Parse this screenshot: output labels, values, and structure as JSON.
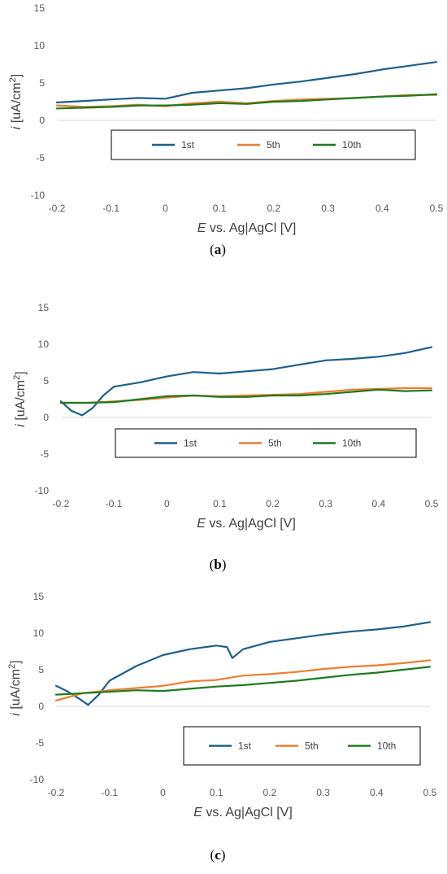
{
  "series_colors": {
    "1st": "#1f5f8b",
    "5th": "#ed7d31",
    "10th": "#1e7a1e"
  },
  "chart_data": [
    {
      "type": "line",
      "panel_label": {
        "pre": "(",
        "letter": "a",
        "post": ")"
      },
      "xlabel": {
        "italic": "E",
        "rest": " vs. Ag|AgCl [V]"
      },
      "ylabel": {
        "italic": "i",
        "rest": " [uA/cm",
        "sup": "2",
        "close": "]"
      },
      "xlim": [
        -0.2,
        0.5
      ],
      "ylim": [
        -10,
        15
      ],
      "xticks": [
        -0.2,
        -0.1,
        0,
        0.1,
        0.2,
        0.3,
        0.4,
        0.5
      ],
      "xtick_labels": [
        "-0.2",
        "-0.1",
        "0",
        "0.1",
        "0.2",
        "0.3",
        "0.4",
        "0.5"
      ],
      "yticks": [
        -10,
        -5,
        0,
        5,
        10,
        15
      ],
      "ytick_labels": [
        "-10",
        "-5",
        "0",
        "5",
        "10",
        "15"
      ],
      "grid": false,
      "legend": {
        "entries": [
          "1st",
          "5th",
          "10th"
        ],
        "placement": "center"
      },
      "series": [
        {
          "name": "1st",
          "x": [
            -0.2,
            -0.15,
            -0.1,
            -0.05,
            0,
            0.05,
            0.1,
            0.15,
            0.2,
            0.25,
            0.3,
            0.35,
            0.4,
            0.45,
            0.5
          ],
          "y": [
            2.4,
            2.6,
            2.8,
            3.0,
            2.9,
            3.7,
            4.0,
            4.3,
            4.8,
            5.2,
            5.7,
            6.2,
            6.8,
            7.3,
            7.8
          ]
        },
        {
          "name": "5th",
          "x": [
            -0.2,
            -0.15,
            -0.1,
            -0.05,
            0,
            0.05,
            0.1,
            0.15,
            0.2,
            0.25,
            0.3,
            0.35,
            0.4,
            0.45,
            0.5
          ],
          "y": [
            2.0,
            1.8,
            1.9,
            2.1,
            1.9,
            2.3,
            2.5,
            2.3,
            2.6,
            2.8,
            2.9,
            3.0,
            3.2,
            3.4,
            3.4
          ]
        },
        {
          "name": "10th",
          "x": [
            -0.2,
            -0.15,
            -0.1,
            -0.05,
            0,
            0.05,
            0.1,
            0.15,
            0.2,
            0.25,
            0.3,
            0.35,
            0.4,
            0.45,
            0.5
          ],
          "y": [
            1.6,
            1.7,
            1.8,
            2.0,
            2.0,
            2.1,
            2.3,
            2.2,
            2.5,
            2.6,
            2.8,
            3.0,
            3.2,
            3.3,
            3.5
          ]
        }
      ]
    },
    {
      "type": "line",
      "panel_label": {
        "pre": "(",
        "letter": "b",
        "post": ")"
      },
      "xlabel": {
        "italic": "E",
        "rest": " vs. Ag|AgCl [V]"
      },
      "ylabel": {
        "italic": "i",
        "rest": " [uA/cm",
        "sup": "2",
        "close": "]"
      },
      "xlim": [
        -0.2,
        0.5
      ],
      "ylim": [
        -10,
        15
      ],
      "xticks": [
        -0.2,
        -0.1,
        0,
        0.1,
        0.2,
        0.3,
        0.4,
        0.5
      ],
      "xtick_labels": [
        "-0.2",
        "-0.1",
        "0",
        "0.1",
        "0.2",
        "0.3",
        "0.4",
        "0.5"
      ],
      "yticks": [
        -10,
        -5,
        0,
        5,
        10,
        15
      ],
      "ytick_labels": [
        "-10",
        "-5",
        "0",
        "5",
        "10",
        "15"
      ],
      "grid": false,
      "legend": {
        "entries": [
          "1st",
          "5th",
          "10th"
        ],
        "placement": "center"
      },
      "series": [
        {
          "name": "1st",
          "x": [
            -0.2,
            -0.18,
            -0.16,
            -0.14,
            -0.12,
            -0.1,
            -0.05,
            0,
            0.05,
            0.1,
            0.15,
            0.2,
            0.25,
            0.3,
            0.35,
            0.4,
            0.45,
            0.5
          ],
          "y": [
            2.2,
            0.9,
            0.3,
            1.3,
            3.0,
            4.2,
            4.8,
            5.6,
            6.2,
            6.0,
            6.3,
            6.6,
            7.2,
            7.8,
            8.0,
            8.3,
            8.8,
            9.6
          ]
        },
        {
          "name": "5th",
          "x": [
            -0.2,
            -0.15,
            -0.1,
            -0.05,
            0,
            0.05,
            0.1,
            0.15,
            0.2,
            0.25,
            0.3,
            0.35,
            0.4,
            0.45,
            0.5
          ],
          "y": [
            2.0,
            2.0,
            2.2,
            2.4,
            2.7,
            3.0,
            2.9,
            3.0,
            3.1,
            3.2,
            3.5,
            3.8,
            3.9,
            4.0,
            4.0
          ]
        },
        {
          "name": "10th",
          "x": [
            -0.2,
            -0.15,
            -0.1,
            -0.05,
            0,
            0.05,
            0.1,
            0.15,
            0.2,
            0.25,
            0.3,
            0.35,
            0.4,
            0.45,
            0.5
          ],
          "y": [
            2.0,
            2.0,
            2.1,
            2.5,
            2.9,
            3.0,
            2.8,
            2.8,
            3.0,
            3.0,
            3.2,
            3.5,
            3.8,
            3.6,
            3.7
          ]
        }
      ]
    },
    {
      "type": "line",
      "panel_label": {
        "pre": "(",
        "letter": "c",
        "post": ")"
      },
      "xlabel": {
        "italic": "E",
        "rest": " vs. Ag|AgCl [V]"
      },
      "ylabel": {
        "italic": "i",
        "rest": " [uA/cm",
        "sup": "2",
        "close": "]"
      },
      "xlim": [
        -0.2,
        0.5
      ],
      "ylim": [
        -10,
        15
      ],
      "xticks": [
        -0.2,
        -0.1,
        0,
        0.1,
        0.2,
        0.3,
        0.4,
        0.5
      ],
      "xtick_labels": [
        "-0.2",
        "-0.1",
        "0",
        "0.1",
        "0.2",
        "0.3",
        "0.4",
        "0.5"
      ],
      "yticks": [
        -10,
        -5,
        0,
        5,
        10,
        15
      ],
      "ytick_labels": [
        "-10",
        "-5",
        "0",
        "5",
        "10",
        "15"
      ],
      "grid": false,
      "legend": {
        "entries": [
          "1st",
          "5th",
          "10th"
        ],
        "placement": "lower right"
      },
      "series": [
        {
          "name": "1st",
          "x": [
            -0.2,
            -0.18,
            -0.16,
            -0.14,
            -0.12,
            -0.1,
            -0.05,
            0,
            0.05,
            0.1,
            0.12,
            0.13,
            0.15,
            0.2,
            0.25,
            0.3,
            0.35,
            0.4,
            0.45,
            0.5
          ],
          "y": [
            2.8,
            2.1,
            1.2,
            0.2,
            1.6,
            3.5,
            5.5,
            7.0,
            7.8,
            8.3,
            8.1,
            6.6,
            7.8,
            8.8,
            9.3,
            9.8,
            10.2,
            10.5,
            10.9,
            11.5
          ]
        },
        {
          "name": "5th",
          "x": [
            -0.2,
            -0.15,
            -0.1,
            -0.05,
            0,
            0.05,
            0.1,
            0.15,
            0.2,
            0.25,
            0.3,
            0.35,
            0.4,
            0.45,
            0.5
          ],
          "y": [
            0.8,
            1.8,
            2.2,
            2.5,
            2.8,
            3.4,
            3.6,
            4.2,
            4.4,
            4.7,
            5.1,
            5.4,
            5.6,
            5.9,
            6.3
          ]
        },
        {
          "name": "10th",
          "x": [
            -0.2,
            -0.15,
            -0.1,
            -0.05,
            0,
            0.05,
            0.1,
            0.15,
            0.2,
            0.25,
            0.3,
            0.35,
            0.4,
            0.45,
            0.5
          ],
          "y": [
            1.6,
            1.8,
            2.0,
            2.2,
            2.1,
            2.4,
            2.7,
            2.9,
            3.2,
            3.5,
            3.9,
            4.3,
            4.6,
            5.0,
            5.4
          ]
        }
      ]
    }
  ]
}
